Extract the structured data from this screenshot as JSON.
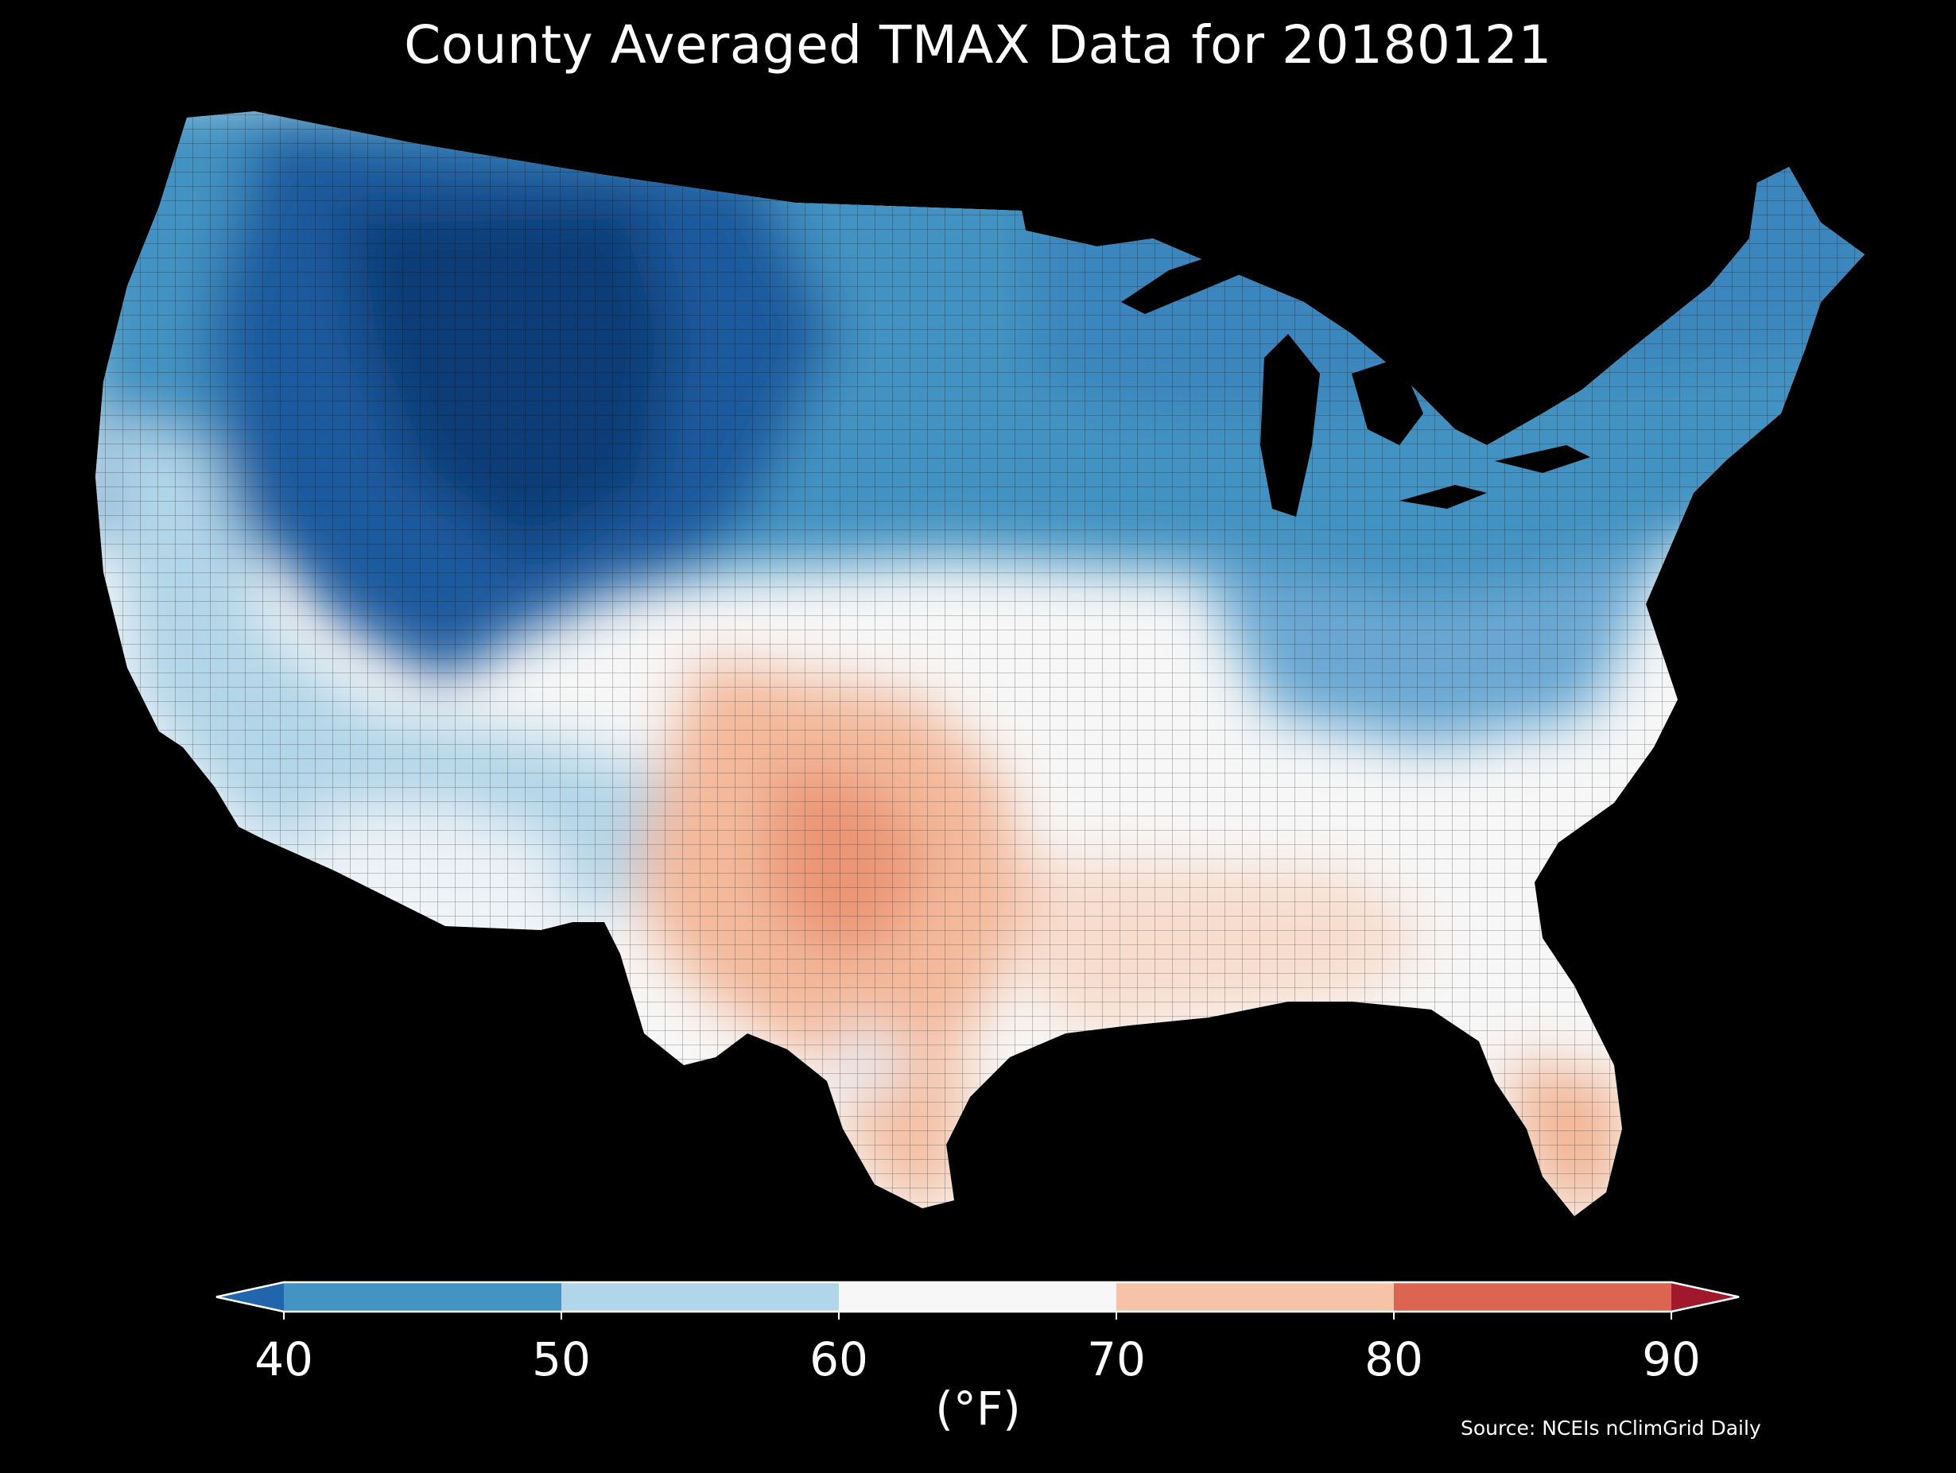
{
  "title": "County Averaged TMAX Data for 20180121",
  "colorbar": {
    "unit_label": "(°F)",
    "ticks": [
      "40",
      "50",
      "60",
      "70",
      "80",
      "90"
    ],
    "bins": [
      {
        "range": "<40",
        "color": "#2166ac"
      },
      {
        "range": "40-50",
        "color": "#4393c3"
      },
      {
        "range": "50-60",
        "color": "#b2d6e9"
      },
      {
        "range": "60-70",
        "color": "#f7f7f7"
      },
      {
        "range": "70-80",
        "color": "#f7c3a8"
      },
      {
        "range": "80-90",
        "color": "#dc6551"
      },
      {
        "range": ">90",
        "color": "#a0182b"
      }
    ]
  },
  "source": "Source: NCEIs nClimGrid Daily",
  "colors": {
    "background": "#000000",
    "text": "#ffffff",
    "deep_cold": "#0d3c74",
    "lake": "#000000"
  },
  "map": {
    "region": "Contiguous United States",
    "units": "county",
    "regions_coloring": [
      {
        "area": "Northern Rockies / Great Basin",
        "bin": "<40"
      },
      {
        "area": "Upper Midwest / Northeast",
        "bin": "40-50"
      },
      {
        "area": "Ohio Valley / Mid-Atlantic band",
        "bin": "40-50"
      },
      {
        "area": "Southwest / California coast",
        "bin": "50-60"
      },
      {
        "area": "Southeast / Gulf Coast",
        "bin": "60-70"
      },
      {
        "area": "Texas / Southern Plains",
        "bin": "70-80"
      },
      {
        "area": "Florida peninsula",
        "bin": "70-80"
      }
    ]
  }
}
